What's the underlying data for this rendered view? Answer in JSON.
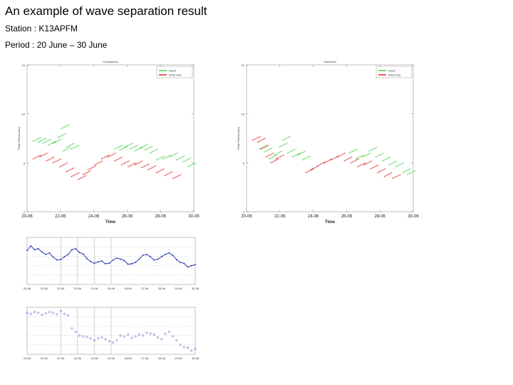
{
  "header": {
    "title": "An example of wave separation result",
    "station_line": "Station : K13APFM",
    "period_line": "Period : 20 June – 30 June"
  },
  "colors": {
    "swell": "#33cc33",
    "wind_sea": "#e01818",
    "line": "#1c2fb0",
    "markers": "#8080d0",
    "grid": "#c8c8c8"
  },
  "chart_data": [
    {
      "type": "scatter",
      "title": "Comparison",
      "xlabel": "Time",
      "ylabel": "Peak Period (sec)",
      "x_ticks": [
        "20-06",
        "22-06",
        "24-06",
        "26-06",
        "28-06",
        "30-06"
      ],
      "y_ticks": [
        "0",
        "5",
        "10",
        "15"
      ],
      "ylim": [
        0,
        15
      ],
      "legend": [
        "Swell",
        "Wind Sea"
      ],
      "legend_position": "top-right",
      "grid": false,
      "series": [
        {
          "name": "Swell",
          "points": [
            [
              0.6,
              7.4
            ],
            [
              0.9,
              7.3
            ],
            [
              1.2,
              7.2
            ],
            [
              1.5,
              7.0
            ],
            [
              1.8,
              7.2
            ],
            [
              2.1,
              7.8
            ],
            [
              2.3,
              8.7
            ],
            [
              2.4,
              6.4
            ],
            [
              2.6,
              6.8
            ],
            [
              2.9,
              6.6
            ],
            [
              5.5,
              6.6
            ],
            [
              5.8,
              6.5
            ],
            [
              6.1,
              6.8
            ],
            [
              6.4,
              6.6
            ],
            [
              6.7,
              6.4
            ],
            [
              7.0,
              6.7
            ],
            [
              7.3,
              6.5
            ],
            [
              7.6,
              6.2
            ],
            [
              8.0,
              5.5
            ],
            [
              8.4,
              5.6
            ],
            [
              8.8,
              5.8
            ],
            [
              9.2,
              5.5
            ],
            [
              9.6,
              5.3
            ],
            [
              9.9,
              4.8
            ]
          ]
        },
        {
          "name": "Wind Sea",
          "points": [
            [
              0.6,
              5.6
            ],
            [
              1.0,
              5.8
            ],
            [
              1.4,
              5.4
            ],
            [
              1.8,
              5.2
            ],
            [
              2.2,
              4.8
            ],
            [
              2.6,
              4.3
            ],
            [
              2.9,
              3.8
            ],
            [
              3.3,
              3.5
            ],
            [
              3.6,
              4.0
            ],
            [
              3.9,
              4.5
            ],
            [
              4.3,
              5.0
            ],
            [
              4.7,
              5.6
            ],
            [
              5.1,
              5.8
            ],
            [
              5.5,
              5.4
            ],
            [
              5.9,
              5.0
            ],
            [
              6.3,
              4.8
            ],
            [
              6.7,
              5.0
            ],
            [
              7.1,
              4.7
            ],
            [
              7.5,
              4.5
            ],
            [
              8.0,
              4.2
            ],
            [
              8.5,
              3.9
            ],
            [
              9.0,
              3.6
            ]
          ]
        }
      ]
    },
    {
      "type": "scatter",
      "title": "Observed",
      "xlabel": "Time",
      "ylabel": "Peak Period (sec)",
      "x_ticks": [
        "20-06",
        "22-06",
        "24-06",
        "26-06",
        "28-06",
        "30-06"
      ],
      "y_ticks": [
        "0",
        "5",
        "10",
        "15"
      ],
      "ylim": [
        0,
        15
      ],
      "legend": [
        "Swell",
        "Wind Sea"
      ],
      "legend_position": "top-right",
      "grid": false,
      "series": [
        {
          "name": "Swell",
          "points": [
            [
              1.0,
              6.6
            ],
            [
              1.3,
              6.3
            ],
            [
              1.6,
              5.6
            ],
            [
              1.9,
              6.0
            ],
            [
              2.2,
              6.8
            ],
            [
              2.4,
              7.5
            ],
            [
              2.7,
              6.2
            ],
            [
              3.0,
              5.8
            ],
            [
              3.3,
              6.0
            ],
            [
              3.6,
              5.5
            ],
            [
              6.4,
              6.2
            ],
            [
              6.8,
              5.6
            ],
            [
              7.2,
              5.8
            ],
            [
              7.6,
              6.4
            ],
            [
              8.0,
              5.8
            ],
            [
              8.4,
              5.4
            ],
            [
              8.8,
              5.0
            ],
            [
              9.2,
              4.8
            ],
            [
              9.6,
              4.2
            ],
            [
              9.9,
              4.0
            ]
          ]
        },
        {
          "name": "Wind Sea",
          "points": [
            [
              0.6,
              7.5
            ],
            [
              0.9,
              7.3
            ],
            [
              1.1,
              6.6
            ],
            [
              1.4,
              5.8
            ],
            [
              1.7,
              5.2
            ],
            [
              2.0,
              5.6
            ],
            [
              3.8,
              4.2
            ],
            [
              4.1,
              4.5
            ],
            [
              4.5,
              4.9
            ],
            [
              4.9,
              5.2
            ],
            [
              5.3,
              5.5
            ],
            [
              5.7,
              5.8
            ],
            [
              6.1,
              5.4
            ],
            [
              6.5,
              5.2
            ],
            [
              6.9,
              4.8
            ],
            [
              7.3,
              5.0
            ],
            [
              7.7,
              4.6
            ],
            [
              8.1,
              4.2
            ],
            [
              8.5,
              3.8
            ],
            [
              9.0,
              3.6
            ]
          ]
        }
      ]
    },
    {
      "type": "line",
      "title": "",
      "x_ticks": [
        "20-06",
        "21-06",
        "22-06",
        "23-06",
        "24-06",
        "25-06",
        "26-06",
        "27-06",
        "28-06",
        "29-06",
        "30-06"
      ],
      "values": [
        0.28,
        0.18,
        0.26,
        0.24,
        0.31,
        0.36,
        0.33,
        0.42,
        0.48,
        0.47,
        0.41,
        0.36,
        0.26,
        0.24,
        0.32,
        0.35,
        0.45,
        0.51,
        0.55,
        0.52,
        0.5,
        0.56,
        0.55,
        0.48,
        0.44,
        0.46,
        0.49,
        0.57,
        0.56,
        0.53,
        0.46,
        0.38,
        0.36,
        0.41,
        0.48,
        0.46,
        0.41,
        0.36,
        0.33,
        0.38,
        0.47,
        0.53,
        0.55,
        0.63,
        0.6,
        0.58
      ]
    },
    {
      "type": "scatter",
      "title": "",
      "x_ticks": [
        "20-06",
        "21-06",
        "22-06",
        "23-06",
        "24-06",
        "25-06",
        "26-06",
        "27-06",
        "28-06",
        "29-06",
        "30-06"
      ],
      "values": [
        0.12,
        0.14,
        0.1,
        0.12,
        0.16,
        0.13,
        0.1,
        0.12,
        0.15,
        0.08,
        0.14,
        0.17,
        0.45,
        0.52,
        0.6,
        0.62,
        0.63,
        0.66,
        0.7,
        0.66,
        0.64,
        0.68,
        0.72,
        0.75,
        0.7,
        0.6,
        0.62,
        0.58,
        0.65,
        0.62,
        0.58,
        0.6,
        0.54,
        0.56,
        0.58,
        0.64,
        0.68,
        0.56,
        0.52,
        0.62,
        0.7,
        0.8,
        0.84,
        0.86,
        0.92,
        0.88
      ]
    }
  ]
}
